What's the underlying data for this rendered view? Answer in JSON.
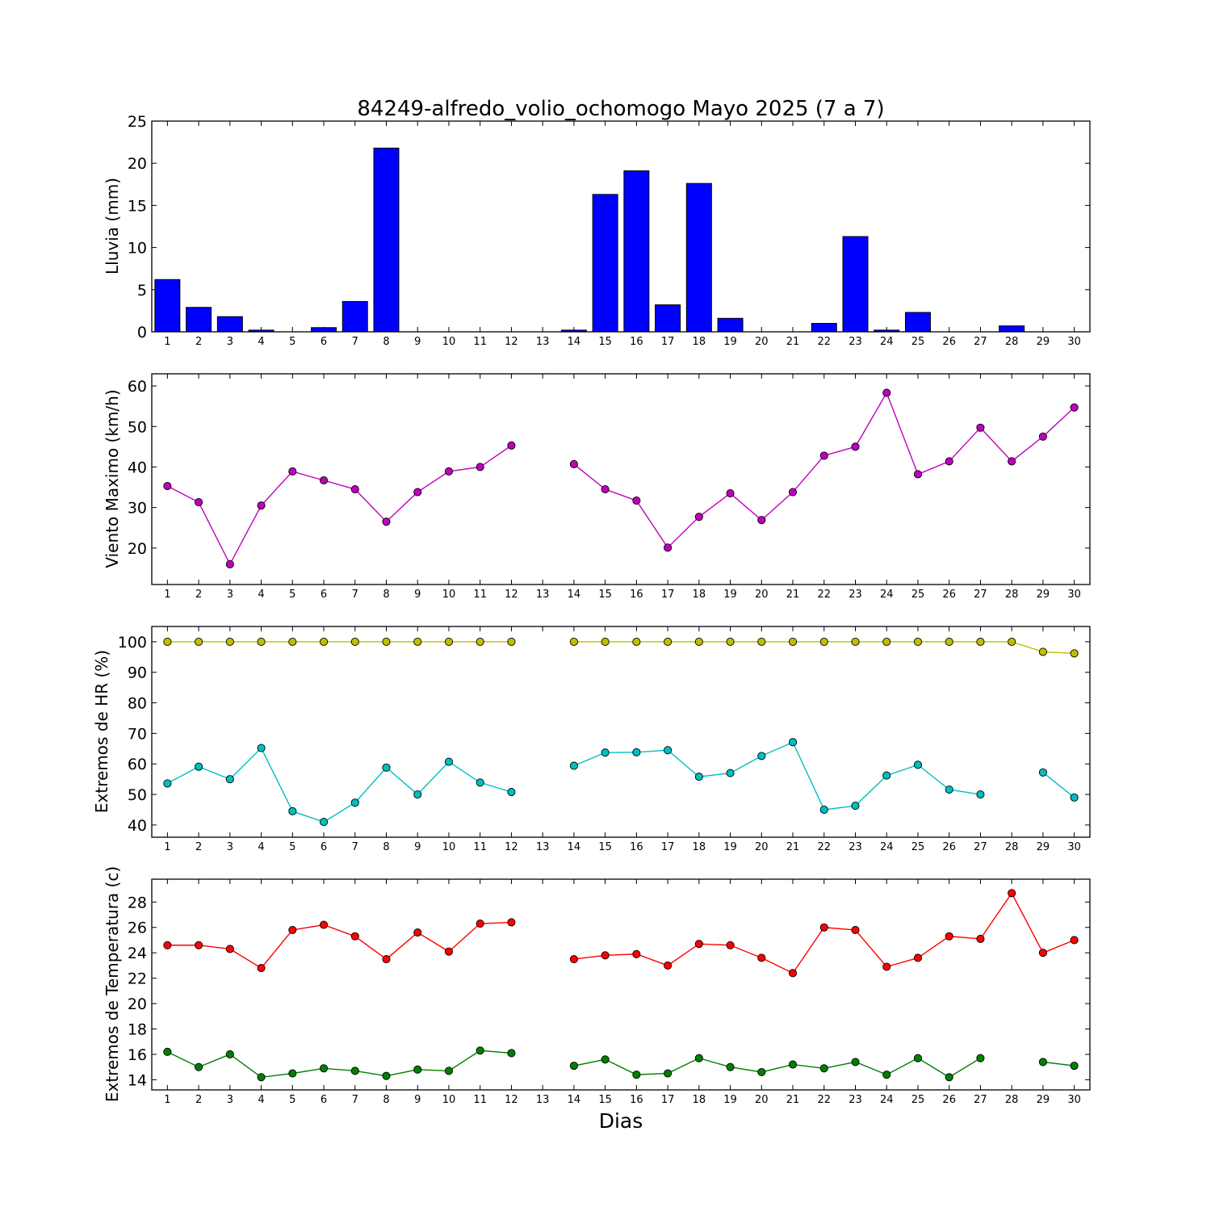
{
  "chart_data": [
    {
      "type": "bar",
      "title": "84249-alfredo_volio_ochomogo Mayo 2025  (7 a 7)",
      "xlabel": "",
      "ylabel": "Lluvia (mm)",
      "categories": [
        "1",
        "2",
        "3",
        "4",
        "5",
        "6",
        "7",
        "8",
        "9",
        "10",
        "11",
        "12",
        "13",
        "14",
        "15",
        "16",
        "17",
        "18",
        "19",
        "20",
        "21",
        "22",
        "23",
        "24",
        "25",
        "26",
        "27",
        "28",
        "29",
        "30"
      ],
      "values": [
        6.2,
        2.9,
        1.8,
        0.2,
        0.0,
        0.5,
        3.6,
        21.8,
        0.0,
        0.0,
        0.0,
        0.0,
        0.0,
        0.2,
        16.3,
        19.1,
        3.2,
        17.6,
        1.6,
        0.0,
        0.0,
        1.0,
        11.3,
        0.2,
        2.3,
        0.0,
        0.0,
        0.7,
        0.0,
        0.0
      ],
      "ylim": [
        0,
        25
      ],
      "yticks": [
        0,
        5,
        10,
        15,
        20,
        25
      ],
      "colors": {
        "bar": "#0000ff"
      }
    },
    {
      "type": "line",
      "xlabel": "",
      "ylabel": "Viento Maximo (km/h)",
      "x": [
        1,
        2,
        3,
        4,
        5,
        6,
        7,
        8,
        9,
        10,
        11,
        12,
        13,
        14,
        15,
        16,
        17,
        18,
        19,
        20,
        21,
        22,
        23,
        24,
        25,
        26,
        27,
        28,
        29,
        30
      ],
      "series": [
        {
          "color": "#bf00bf",
          "values": [
            35.3,
            31.3,
            16.0,
            30.5,
            38.9,
            36.7,
            34.5,
            26.5,
            33.8,
            38.9,
            40.0,
            45.3,
            null,
            40.7,
            34.5,
            31.7,
            20.1,
            27.7,
            33.5,
            26.9,
            33.8,
            42.8,
            45.0,
            58.3,
            38.2,
            41.4,
            49.7,
            41.4,
            47.5,
            54.7
          ]
        }
      ],
      "ylim": [
        11,
        63
      ],
      "yticks": [
        20,
        30,
        40,
        50,
        60
      ]
    },
    {
      "type": "line",
      "xlabel": "",
      "ylabel": "Extremos de HR (%)",
      "x": [
        1,
        2,
        3,
        4,
        5,
        6,
        7,
        8,
        9,
        10,
        11,
        12,
        13,
        14,
        15,
        16,
        17,
        18,
        19,
        20,
        21,
        22,
        23,
        24,
        25,
        26,
        27,
        28,
        29,
        30
      ],
      "series": [
        {
          "color": "#bfbf00",
          "values": [
            100,
            100,
            100,
            100,
            100,
            100,
            100,
            100,
            100,
            100,
            100,
            100,
            null,
            100,
            100,
            100,
            100,
            100,
            100,
            100,
            100,
            100,
            100,
            100,
            100,
            100,
            100,
            100,
            96.7,
            96.2
          ]
        },
        {
          "color": "#00bfbf",
          "values": [
            53.6,
            59.1,
            55.0,
            65.2,
            44.5,
            41.0,
            47.3,
            58.8,
            50.0,
            60.7,
            53.9,
            50.8,
            null,
            59.4,
            63.7,
            63.8,
            64.5,
            55.8,
            57.0,
            62.6,
            67.1,
            45.0,
            46.3,
            56.2,
            59.7,
            51.6,
            50.0,
            null,
            57.2,
            49.0
          ]
        }
      ],
      "ylim": [
        36,
        105
      ],
      "yticks": [
        40,
        50,
        60,
        70,
        80,
        90,
        100
      ]
    },
    {
      "type": "line",
      "xlabel": "Dias",
      "ylabel": "Extremos de Temperatura (c)",
      "x": [
        1,
        2,
        3,
        4,
        5,
        6,
        7,
        8,
        9,
        10,
        11,
        12,
        13,
        14,
        15,
        16,
        17,
        18,
        19,
        20,
        21,
        22,
        23,
        24,
        25,
        26,
        27,
        28,
        29,
        30
      ],
      "series": [
        {
          "color": "#ff0000",
          "values": [
            24.6,
            24.6,
            24.3,
            22.8,
            25.8,
            26.2,
            25.3,
            23.5,
            25.6,
            24.1,
            26.3,
            26.4,
            null,
            23.5,
            23.8,
            23.9,
            23.0,
            24.7,
            24.6,
            23.6,
            22.4,
            26.0,
            25.8,
            22.9,
            23.6,
            25.3,
            25.1,
            28.7,
            24.0,
            25.0
          ]
        },
        {
          "color": "#007f00",
          "values": [
            16.2,
            15.0,
            16.0,
            14.2,
            14.5,
            14.9,
            14.7,
            14.3,
            14.8,
            14.7,
            16.3,
            16.1,
            null,
            15.1,
            15.6,
            14.4,
            14.5,
            15.7,
            15.0,
            14.6,
            15.2,
            14.9,
            15.4,
            14.4,
            15.7,
            14.2,
            15.7,
            null,
            15.4,
            15.1
          ]
        }
      ],
      "ylim": [
        13.2,
        29.8
      ],
      "yticks": [
        14,
        16,
        18,
        20,
        22,
        24,
        26,
        28
      ]
    }
  ]
}
